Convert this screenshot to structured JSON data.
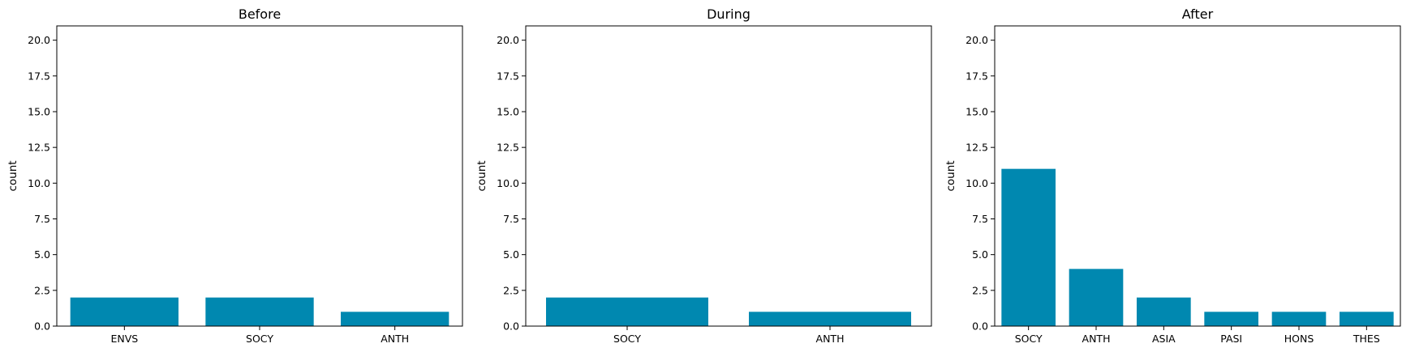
{
  "chart_data": [
    {
      "type": "bar",
      "title": "Before",
      "ylabel": "count",
      "categories": [
        "ENVS",
        "SOCY",
        "ANTH"
      ],
      "values": [
        2,
        2,
        1
      ],
      "ylim": [
        0,
        21
      ],
      "yticks": [
        "0.0",
        "2.5",
        "5.0",
        "7.5",
        "10.0",
        "12.5",
        "15.0",
        "17.5",
        "20.0"
      ],
      "color": "#0088b0",
      "grid": false
    },
    {
      "type": "bar",
      "title": "During",
      "ylabel": "count",
      "categories": [
        "SOCY",
        "ANTH"
      ],
      "values": [
        2,
        1
      ],
      "ylim": [
        0,
        21
      ],
      "yticks": [
        "0.0",
        "2.5",
        "5.0",
        "7.5",
        "10.0",
        "12.5",
        "15.0",
        "17.5",
        "20.0"
      ],
      "color": "#0088b0",
      "grid": false
    },
    {
      "type": "bar",
      "title": "After",
      "ylabel": "count",
      "categories": [
        "SOCY",
        "ANTH",
        "ASIA",
        "PASI",
        "HONS",
        "THES"
      ],
      "values": [
        11,
        4,
        2,
        1,
        1,
        1
      ],
      "ylim": [
        0,
        21
      ],
      "yticks": [
        "0.0",
        "2.5",
        "5.0",
        "7.5",
        "10.0",
        "12.5",
        "15.0",
        "17.5",
        "20.0"
      ],
      "color": "#0088b0",
      "grid": false
    }
  ]
}
